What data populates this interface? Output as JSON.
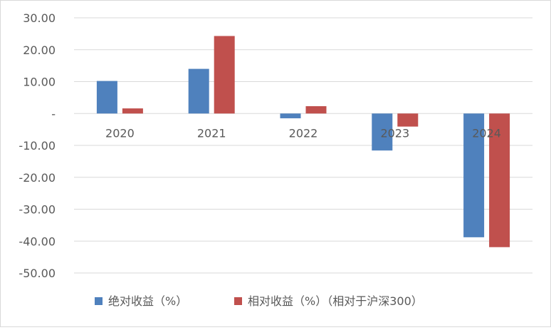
{
  "chart_data": {
    "type": "bar",
    "categories": [
      "2020",
      "2021",
      "2022",
      "2023",
      "2024"
    ],
    "series": [
      {
        "name": "绝对收益（%）",
        "color": "#4F81BD",
        "values": [
          10.2,
          14.0,
          -1.5,
          -11.6,
          -38.8
        ]
      },
      {
        "name": "相对收益（%）（相对于沪深300）",
        "color": "#C0504D",
        "values": [
          1.6,
          24.3,
          2.3,
          -4.1,
          -41.9
        ]
      }
    ],
    "yticks": [
      "30.00",
      "20.00",
      "10.00",
      "-",
      "-10.00",
      "-20.00",
      "-30.00",
      "-40.00",
      "-50.00"
    ],
    "ytick_values": [
      30,
      20,
      10,
      0,
      -10,
      -20,
      -30,
      -40,
      -50
    ],
    "ylim": [
      -50,
      30
    ],
    "grid": true,
    "legend_position": "bottom",
    "title": "",
    "xlabel": "",
    "ylabel": ""
  }
}
